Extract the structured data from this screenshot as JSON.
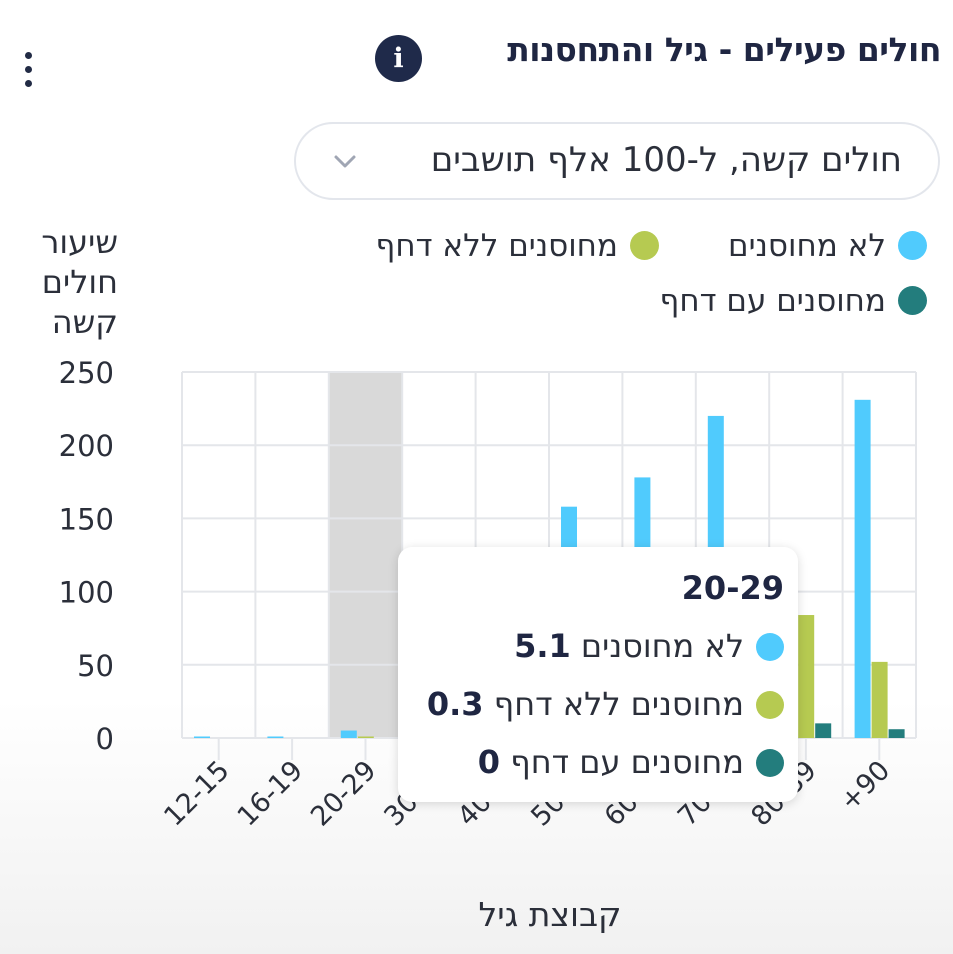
{
  "header": {
    "title": "חולים פעילים - גיל והתחסנות",
    "info_icon": "info-icon",
    "menu_icon": "more-vertical-icon"
  },
  "dropdown": {
    "value": "חולים קשה, ל-100 אלף תושבים",
    "icon": "chevron-down-icon"
  },
  "colors": {
    "not_vaccinated": "#50cbfd",
    "vaccinated_no_booster": "#b6ca51",
    "vaccinated_booster": "#237d7d",
    "highlight": "#d9d9d9"
  },
  "chart_data": {
    "type": "bar",
    "title": "",
    "xlabel": "קבוצת גיל",
    "ylabel": "שיעור חולים קשה",
    "ylim": [
      0,
      250
    ],
    "yticks": [
      0,
      50,
      100,
      150,
      200,
      250
    ],
    "grid": true,
    "legend_position": "top",
    "categories": [
      "12-15",
      "16-19",
      "20-29",
      "30-39",
      "40-49",
      "50-59",
      "60-69",
      "70-79",
      "80-89",
      "+90"
    ],
    "series": [
      {
        "name": "לא מחוסנים",
        "color": "#50cbfd",
        "values": [
          0.3,
          0.8,
          5.1,
          15,
          30,
          158,
          178,
          220,
          0,
          231
        ]
      },
      {
        "name": "מחוסנים ללא דחף",
        "color": "#b6ca51",
        "values": [
          0,
          0,
          0.3,
          0.5,
          2,
          8,
          20,
          55,
          84,
          52
        ]
      },
      {
        "name": "מחוסנים עם דחף",
        "color": "#237d7d",
        "values": [
          0,
          0,
          0,
          0,
          0.5,
          1,
          3,
          6,
          10,
          6
        ]
      }
    ],
    "highlighted_category": "20-29"
  },
  "tooltip": {
    "title": "20-29",
    "rows": [
      {
        "label": "לא מחוסנים",
        "value": "5.1",
        "color": "#50cbfd"
      },
      {
        "label": "מחוסנים ללא דחף",
        "value": "0.3",
        "color": "#b6ca51"
      },
      {
        "label": "מחוסנים עם דחף",
        "value": "0",
        "color": "#237d7d"
      }
    ]
  }
}
